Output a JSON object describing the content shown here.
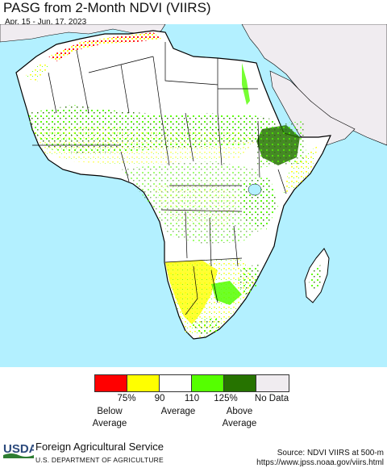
{
  "header": {
    "title": "PASG from 2-Month NDVI (VIIRS)",
    "date_range": "Apr. 15 - Jun. 17, 2023"
  },
  "map": {
    "region": "Africa",
    "ocean_color": "#b3f0ff",
    "land_color": "#ffffff",
    "outside_region_color": "#f0ecf0",
    "border_color": "#000000"
  },
  "legend": {
    "swatches": [
      {
        "color": "#ff0000"
      },
      {
        "color": "#ffff00"
      },
      {
        "color": "#ffffff"
      },
      {
        "color": "#55ff00"
      },
      {
        "color": "#267300"
      },
      {
        "color": "#f0ecf0"
      }
    ],
    "ticks": [
      "75%",
      "90",
      "110",
      "125%"
    ],
    "no_data_label": "No Data",
    "categories": {
      "below": "Below\nAverage",
      "average": "Average",
      "above": "Above\nAverage"
    }
  },
  "footer": {
    "logo_text": "USDA",
    "agency": "Foreign Agricultural Service",
    "department": "U.S. DEPARTMENT OF AGRICULTURE",
    "source": "Source: NDVI VIIRS at 500-m",
    "url": "https://www.jpss.noaa.gov/viirs.html"
  }
}
